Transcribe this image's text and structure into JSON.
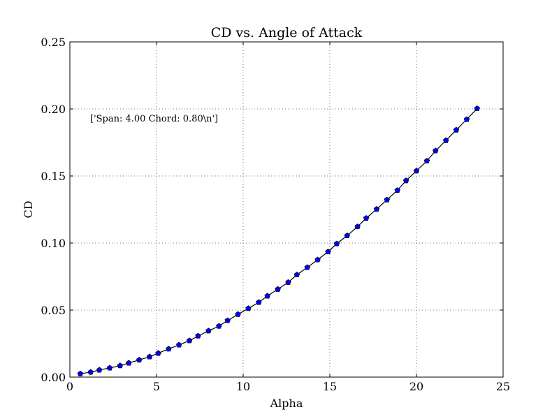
{
  "chart_data": {
    "type": "line",
    "title": "CD vs. Angle of Attack",
    "xlabel": "Alpha",
    "ylabel": "CD",
    "xlim": [
      0,
      25
    ],
    "ylim": [
      0,
      0.25
    ],
    "xticks": [
      "0",
      "5",
      "10",
      "15",
      "20",
      "25"
    ],
    "yticks": [
      "0.00",
      "0.05",
      "0.10",
      "0.15",
      "0.20",
      "0.25"
    ],
    "grid": true,
    "annotation": "['Span: 4.00 Chord: 0.80\\n']",
    "colors": {
      "line": "#000000",
      "marker": "#0000ff",
      "grid": "#777777"
    },
    "series": [
      {
        "x": [
          0.6,
          1.2,
          1.7,
          2.3,
          2.9,
          3.4,
          4.0,
          4.6,
          5.1,
          5.7,
          6.3,
          6.9,
          7.4,
          8.0,
          8.6,
          9.1,
          9.7,
          10.3,
          10.9,
          11.4,
          12.0,
          12.6,
          13.1,
          13.7,
          14.3,
          14.9,
          15.4,
          16.0,
          16.6,
          17.1,
          17.7,
          18.3,
          18.9,
          19.4,
          20.0,
          20.6,
          21.1,
          21.7,
          22.3,
          22.9,
          23.5
        ],
        "values": [
          0.0025,
          0.0037,
          0.0053,
          0.0068,
          0.0085,
          0.0105,
          0.0128,
          0.0152,
          0.0178,
          0.021,
          0.024,
          0.0272,
          0.0307,
          0.0345,
          0.038,
          0.0422,
          0.0468,
          0.0512,
          0.0558,
          0.0605,
          0.0655,
          0.0707,
          0.0763,
          0.0818,
          0.0875,
          0.0935,
          0.0995,
          0.1055,
          0.1122,
          0.1185,
          0.1253,
          0.1322,
          0.1393,
          0.1465,
          0.1538,
          0.1612,
          0.1688,
          0.1765,
          0.1843,
          0.1922,
          0.2003
        ]
      }
    ]
  }
}
